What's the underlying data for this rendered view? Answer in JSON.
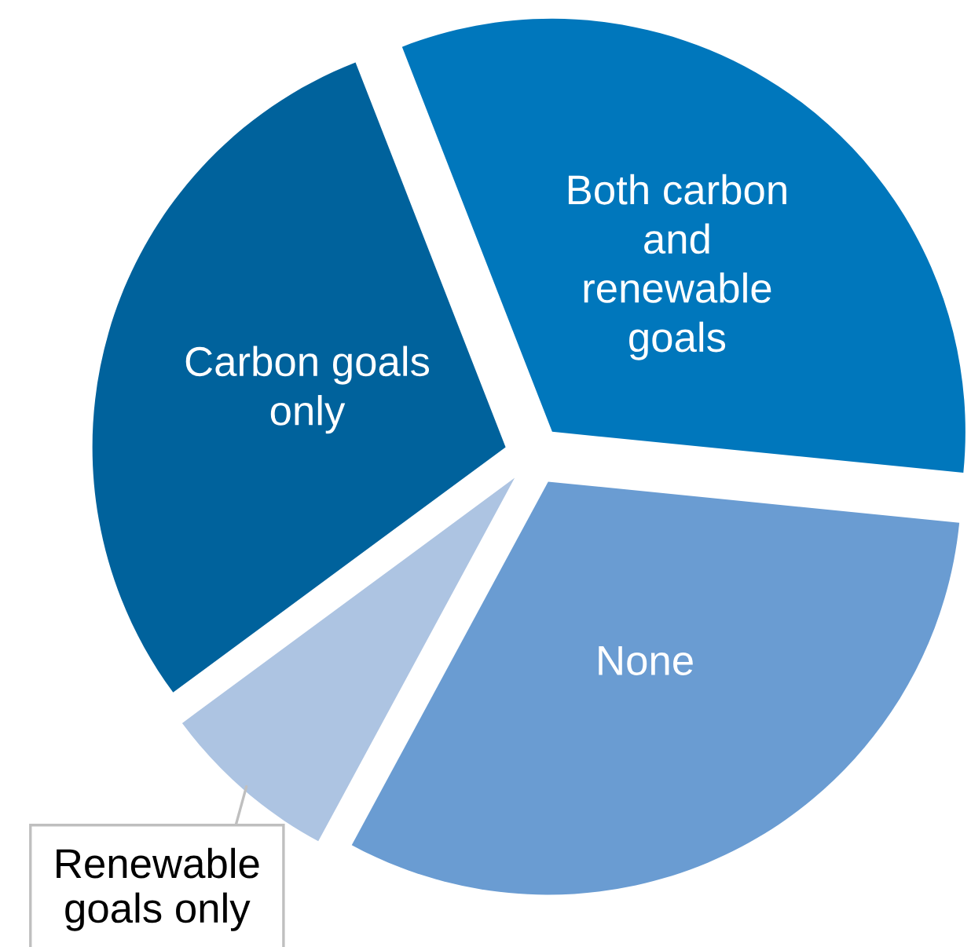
{
  "chart_data": {
    "type": "pie",
    "categories": [
      "Both carbon and renewable goals",
      "None",
      "Renewable goals only",
      "Carbon goals only"
    ],
    "values": [
      32.5,
      31.3,
      7.0,
      29.2
    ],
    "colors": [
      "#0077bc",
      "#6a9cd2",
      "#adc4e2",
      "#00629c"
    ]
  }
}
